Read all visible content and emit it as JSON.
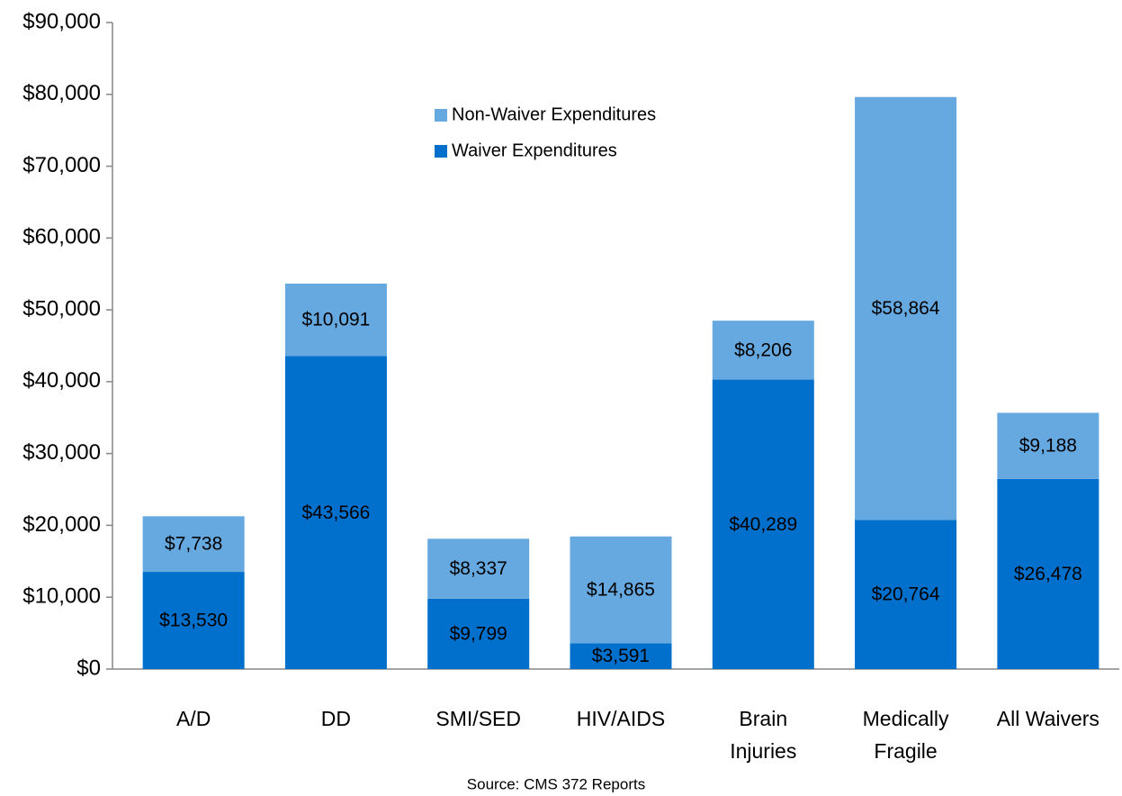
{
  "chart_data": {
    "type": "stacked_bar",
    "categories": [
      "A/D",
      "DD",
      "SMI/SED",
      "HIV/AIDS",
      "Brain\nInjuries",
      "Medically\nFragile",
      "All Waivers"
    ],
    "series": [
      {
        "name": "Waiver Expenditures",
        "color": "#0070cc",
        "values": [
          13530,
          43566,
          9799,
          3591,
          40289,
          20764,
          26478
        ],
        "value_labels": [
          "$13,530",
          "$43,566",
          "$9,799",
          "$3,591",
          "$40,289",
          "$20,764",
          "$26,478"
        ]
      },
      {
        "name": "Non-Waiver Expenditures",
        "color": "#66a8e0",
        "values": [
          7738,
          10091,
          8337,
          14865,
          8206,
          58864,
          9188
        ],
        "value_labels": [
          "$7,738",
          "$10,091",
          "$8,337",
          "$14,865",
          "$8,206",
          "$58,864",
          "$9,188"
        ]
      }
    ],
    "ylim": [
      0,
      90000
    ],
    "yticks": [
      {
        "value": 0,
        "label": "$0"
      },
      {
        "value": 10000,
        "label": "$10,000"
      },
      {
        "value": 20000,
        "label": "$20,000"
      },
      {
        "value": 30000,
        "label": "$30,000"
      },
      {
        "value": 40000,
        "label": "$40,000"
      },
      {
        "value": 50000,
        "label": "$50,000"
      },
      {
        "value": 60000,
        "label": "$60,000"
      },
      {
        "value": 70000,
        "label": "$70,000"
      },
      {
        "value": 80000,
        "label": "$80,000"
      },
      {
        "value": 90000,
        "label": "$90,000"
      }
    ],
    "legend": "top-center",
    "source": "Source: CMS 372 Reports"
  }
}
